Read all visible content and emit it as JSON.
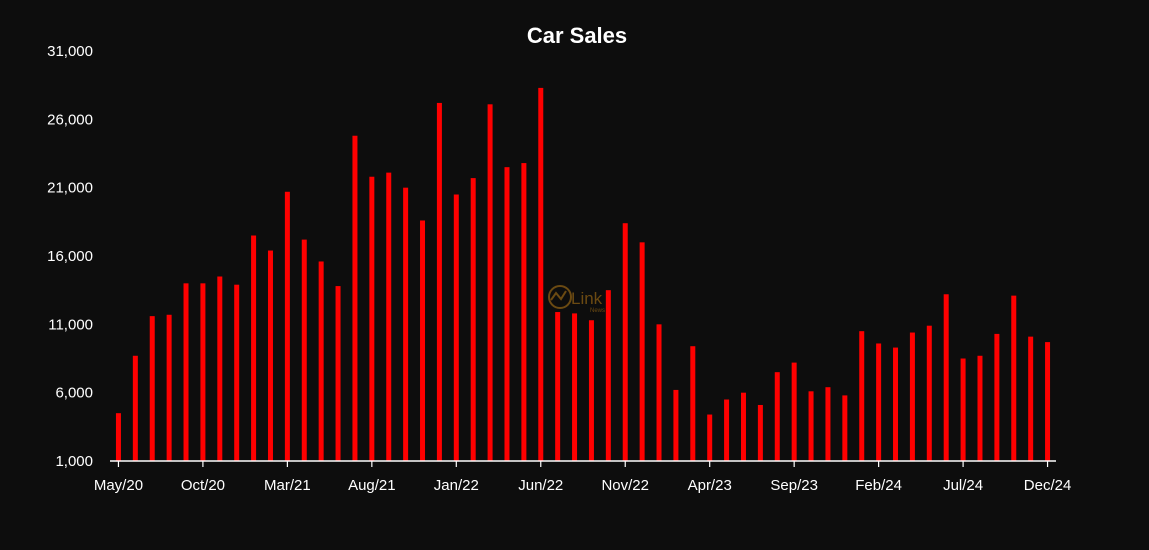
{
  "chart_data": {
    "type": "bar",
    "title": "Car Sales",
    "xlabel": "",
    "ylabel": "",
    "ylim": [
      1000,
      31000
    ],
    "yticks": [
      1000,
      6000,
      11000,
      16000,
      21000,
      26000,
      31000
    ],
    "ytick_labels": [
      "1,000",
      "6,000",
      "11,000",
      "16,000",
      "21,000",
      "26,000",
      "31,000"
    ],
    "xtick_labels": [
      "May/20",
      "Oct/20",
      "Mar/21",
      "Aug/21",
      "Jan/22",
      "Jun/22",
      "Nov/22",
      "Apr/23",
      "Sep/23",
      "Feb/24",
      "Jul/24",
      "Dec/24"
    ],
    "categories": [
      "May/20",
      "Jun/20",
      "Jul/20",
      "Aug/20",
      "Sep/20",
      "Oct/20",
      "Nov/20",
      "Dec/20",
      "Jan/21",
      "Feb/21",
      "Mar/21",
      "Apr/21",
      "May/21",
      "Jun/21",
      "Jul/21",
      "Aug/21",
      "Sep/21",
      "Oct/21",
      "Nov/21",
      "Dec/21",
      "Jan/22",
      "Feb/22",
      "Mar/22",
      "Apr/22",
      "May/22",
      "Jun/22",
      "Jul/22",
      "Aug/22",
      "Sep/22",
      "Oct/22",
      "Nov/22",
      "Dec/22",
      "Jan/23",
      "Feb/23",
      "Mar/23",
      "Apr/23",
      "May/23",
      "Jun/23",
      "Jul/23",
      "Aug/23",
      "Sep/23",
      "Oct/23",
      "Nov/23",
      "Dec/23",
      "Jan/24",
      "Feb/24",
      "Mar/24",
      "Apr/24",
      "May/24",
      "Jun/24",
      "Jul/24",
      "Aug/24",
      "Sep/24",
      "Oct/24",
      "Nov/24",
      "Dec/24"
    ],
    "values": [
      4500,
      8700,
      11600,
      11700,
      14000,
      14000,
      14500,
      13900,
      17500,
      16400,
      20700,
      17200,
      15600,
      13800,
      24800,
      21800,
      22100,
      21000,
      18600,
      27200,
      20500,
      21700,
      27100,
      22500,
      22800,
      28300,
      11900,
      11800,
      11300,
      13500,
      18400,
      17000,
      11000,
      6200,
      9400,
      4400,
      5500,
      6000,
      5100,
      7500,
      8200,
      6100,
      6400,
      5800,
      10500,
      9600,
      9300,
      10400,
      10900,
      13200,
      8500,
      8700,
      10300,
      13100,
      10100,
      9700
    ],
    "bar_color": "#ff0000",
    "background": "#0d0d0d",
    "grid": false,
    "legend": "none"
  },
  "watermark": {
    "text": "Link",
    "subtext": "News",
    "color": "#6b4a12"
  }
}
